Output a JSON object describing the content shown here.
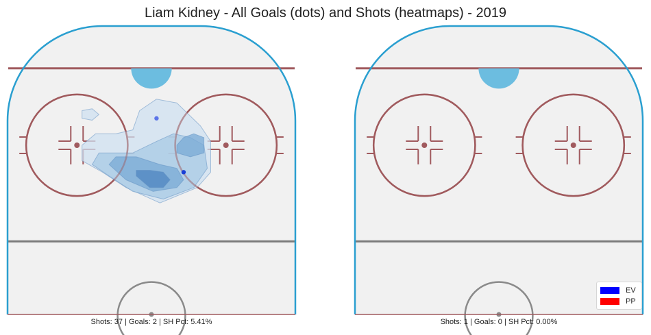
{
  "chart_data": {
    "type": "heatmap",
    "title": "Liam Kidney - All Goals (dots) and Shots (heatmaps) - 2019",
    "legend": {
      "position": "bottom-right",
      "entries": [
        {
          "label": "EV",
          "color": "#0000ff"
        },
        {
          "label": "PP",
          "color": "#ff0000"
        }
      ]
    },
    "panels": [
      {
        "caption": "Shots: 37 | Goals: 2 | SH Pct: 5.41%",
        "shots": 37,
        "goals_count": 2,
        "shooting_pct": 5.41,
        "goals": [
          {
            "x": 52,
            "y": 62,
            "strength": "EV",
            "color": "#1a3fd6"
          },
          {
            "x": 44,
            "y": 76,
            "strength": "EV",
            "color": "#5b74e8"
          }
        ],
        "heatmap_levels": [
          {
            "level": 1,
            "color": "#cfe0f0",
            "shape": [
              [
                22,
                65
              ],
              [
                28,
                62
              ],
              [
                35,
                58
              ],
              [
                45,
                54
              ],
              [
                56,
                58
              ],
              [
                60,
                62
              ],
              [
                60,
                70
              ],
              [
                57,
                74
              ],
              [
                50,
                80
              ],
              [
                44,
                81
              ],
              [
                39,
                78
              ],
              [
                37,
                73
              ],
              [
                32,
                72
              ],
              [
                26,
                72
              ],
              [
                22,
                69
              ]
            ]
          },
          {
            "level": 1,
            "color": "#cfe0f0",
            "shape": [
              [
                22,
                76
              ],
              [
                25,
                75.5
              ],
              [
                27,
                77
              ],
              [
                25,
                78.5
              ],
              [
                22,
                78
              ]
            ]
          },
          {
            "level": 2,
            "color": "#a8c9e4",
            "shape": [
              [
                25,
                64
              ],
              [
                30,
                61
              ],
              [
                37,
                57
              ],
              [
                46,
                55
              ],
              [
                55,
                58
              ],
              [
                59,
                63
              ],
              [
                58,
                69
              ],
              [
                54,
                71
              ],
              [
                49,
                72
              ],
              [
                44,
                70
              ],
              [
                37,
                67
              ],
              [
                31,
                67
              ],
              [
                27,
                67
              ]
            ]
          },
          {
            "level": 3,
            "color": "#7aaad6",
            "shape": [
              [
                30,
                64
              ],
              [
                35,
                60
              ],
              [
                43,
                57
              ],
              [
                50,
                58
              ],
              [
                52,
                60
              ],
              [
                50,
                63
              ],
              [
                45,
                64
              ],
              [
                38,
                66
              ],
              [
                32,
                66
              ]
            ]
          },
          {
            "level": 3,
            "color": "#7aaad6",
            "shape": [
              [
                50,
                67
              ],
              [
                54,
                66
              ],
              [
                58,
                67
              ],
              [
                58,
                71
              ],
              [
                55,
                72
              ],
              [
                52,
                71
              ],
              [
                50,
                69
              ]
            ]
          },
          {
            "level": 4,
            "color": "#4f86c0",
            "shape": [
              [
                38,
                61
              ],
              [
                42,
                58
              ],
              [
                46,
                58
              ],
              [
                48,
                60
              ],
              [
                46,
                62
              ],
              [
                42,
                62.5
              ],
              [
                38,
                62.5
              ]
            ]
          }
        ]
      },
      {
        "caption": "Shots: 1 | Goals: 0 | SH Pct: 0.00%",
        "shots": 1,
        "goals_count": 0,
        "shooting_pct": 0.0,
        "goals": [],
        "heatmap_levels": []
      }
    ],
    "rink": {
      "board_color": "#2a9fd0",
      "red_line_color": "#a05a5e",
      "goal_crease_color": "#6cbde0",
      "blue_line_color": "#7b7b7b",
      "ice_color": "#f1f1f1"
    }
  }
}
